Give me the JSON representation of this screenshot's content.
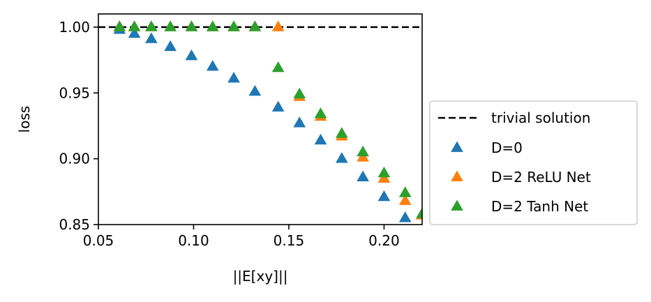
{
  "chart_data": {
    "type": "scatter",
    "xlabel": "||E[xy]||",
    "ylabel": "loss",
    "xlim": [
      0.05,
      0.22
    ],
    "ylim": [
      0.85,
      1.01
    ],
    "x_ticks": [
      0.05,
      0.1,
      0.15,
      0.2
    ],
    "x_tick_labels": [
      "0.05",
      "0.10",
      "0.15",
      "0.20"
    ],
    "y_ticks": [
      0.85,
      0.9,
      0.95,
      1.0
    ],
    "y_tick_labels": [
      "0.85",
      "0.90",
      "0.95",
      "1.00"
    ],
    "legend_position": "outside-right",
    "reference_line": {
      "name": "trivial solution",
      "y": 1.0,
      "color": "#000000",
      "style": "dashed"
    },
    "series": [
      {
        "name": "D=0",
        "color": "#1f77b4",
        "marker": "triangle",
        "x": [
          0.0611,
          0.0689,
          0.0778,
          0.0878,
          0.0989,
          0.11,
          0.1211,
          0.1322,
          0.1444,
          0.1556,
          0.1667,
          0.1778,
          0.1889,
          0.2,
          0.2111
        ],
        "y": [
          0.998,
          0.995,
          0.991,
          0.985,
          0.978,
          0.97,
          0.961,
          0.951,
          0.939,
          0.927,
          0.914,
          0.9,
          0.886,
          0.871,
          0.855
        ]
      },
      {
        "name": "D=2 ReLU Net",
        "color": "#ff7f0e",
        "marker": "triangle",
        "x": [
          0.0611,
          0.0689,
          0.0778,
          0.0878,
          0.0989,
          0.11,
          0.1211,
          0.1322,
          0.1444,
          0.1556,
          0.1667,
          0.1778,
          0.1889,
          0.2,
          0.2111,
          0.22
        ],
        "y": [
          1.0,
          1.0,
          1.0,
          1.0,
          1.0,
          1.0,
          1.0,
          1.0,
          1.0,
          0.947,
          0.932,
          0.917,
          0.901,
          0.885,
          0.868,
          0.857
        ]
      },
      {
        "name": "D=2 Tanh Net",
        "color": "#2ca02c",
        "marker": "triangle",
        "x": [
          0.0611,
          0.0689,
          0.0778,
          0.0878,
          0.0989,
          0.11,
          0.1211,
          0.1322,
          0.1444,
          0.1556,
          0.1667,
          0.1778,
          0.1889,
          0.2,
          0.2111,
          0.22
        ],
        "y": [
          1.0,
          1.0,
          1.0,
          1.0,
          1.0,
          1.0,
          1.0,
          1.0,
          0.969,
          0.949,
          0.934,
          0.919,
          0.905,
          0.889,
          0.874,
          0.858
        ]
      }
    ]
  }
}
